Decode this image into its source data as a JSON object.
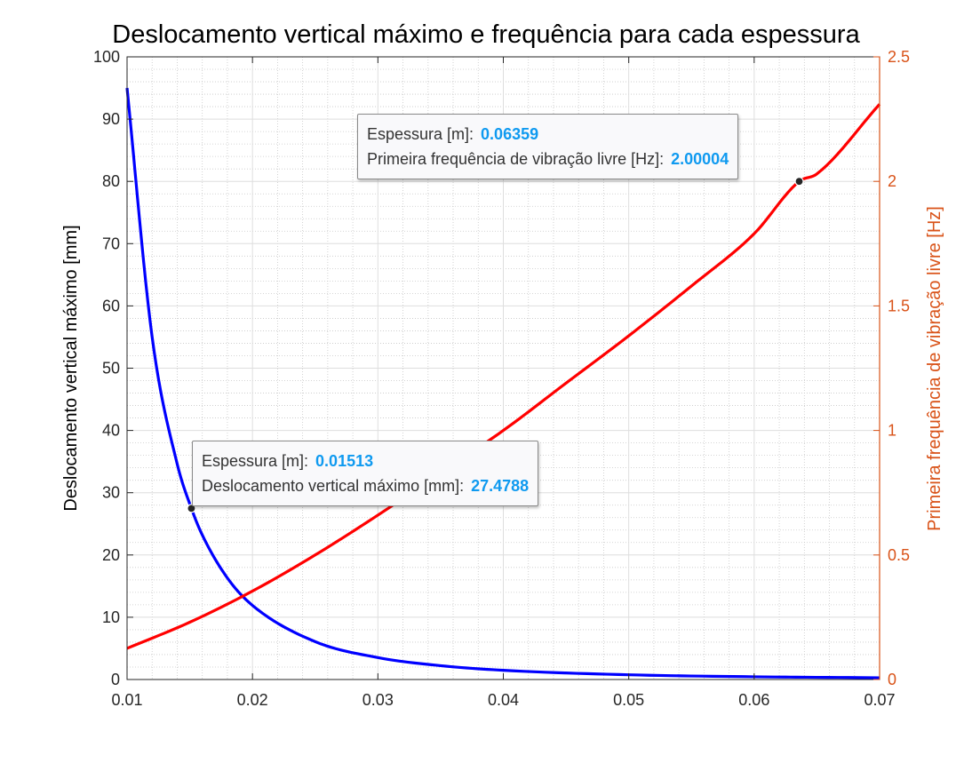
{
  "chart_data": {
    "type": "line",
    "title": "Deslocamento vertical máximo e frequência para cada espessura",
    "xlim": [
      0.01,
      0.07
    ],
    "x_ticks": [
      "0.01",
      "0.02",
      "0.03",
      "0.04",
      "0.05",
      "0.06",
      "0.07"
    ],
    "grid": true,
    "minor_grid": true,
    "y_left": {
      "label": "Deslocamento vertical máximo [mm]",
      "ylim": [
        0,
        100
      ],
      "ticks": [
        "0",
        "10",
        "20",
        "30",
        "40",
        "50",
        "60",
        "70",
        "80",
        "90",
        "100"
      ],
      "color": "#000000"
    },
    "y_right": {
      "label": "Primeira frequência de vibração livre [Hz]",
      "ylim": [
        0,
        2.5
      ],
      "ticks": [
        "0",
        "0.5",
        "1",
        "1.5",
        "2",
        "2.5"
      ],
      "color": "#d95319"
    },
    "series": [
      {
        "axis": "left",
        "color": "#0000ff",
        "x": [
          0.01,
          0.012,
          0.014,
          0.01513,
          0.016,
          0.018,
          0.02,
          0.025,
          0.03,
          0.035,
          0.04,
          0.05,
          0.06,
          0.07
        ],
        "y": [
          95.0,
          55.0,
          34.6,
          27.48,
          23.2,
          16.3,
          11.9,
          6.08,
          3.52,
          2.22,
          1.48,
          0.76,
          0.44,
          0.28
        ]
      },
      {
        "axis": "right",
        "color": "#ff0000",
        "x": [
          0.01,
          0.015,
          0.02,
          0.025,
          0.03,
          0.035,
          0.04,
          0.045,
          0.05,
          0.055,
          0.06,
          0.06359,
          0.065,
          0.07
        ],
        "y": [
          0.125,
          0.23,
          0.355,
          0.5,
          0.66,
          0.83,
          1.0,
          1.19,
          1.38,
          1.58,
          1.79,
          2.00004,
          2.03,
          2.31
        ]
      }
    ],
    "datatips": [
      {
        "axis": "right",
        "x": 0.06359,
        "y": 2.00004,
        "rows": [
          {
            "label": "Espessura [m]:",
            "value": "0.06359"
          },
          {
            "label": "Primeira frequência de vibração livre [Hz]:",
            "value": "2.00004"
          }
        ]
      },
      {
        "axis": "left",
        "x": 0.01513,
        "y": 27.4788,
        "rows": [
          {
            "label": "Espessura [m]:",
            "value": "0.01513"
          },
          {
            "label": "Deslocamento vertical máximo [mm]:",
            "value": "27.4788"
          }
        ]
      }
    ]
  }
}
